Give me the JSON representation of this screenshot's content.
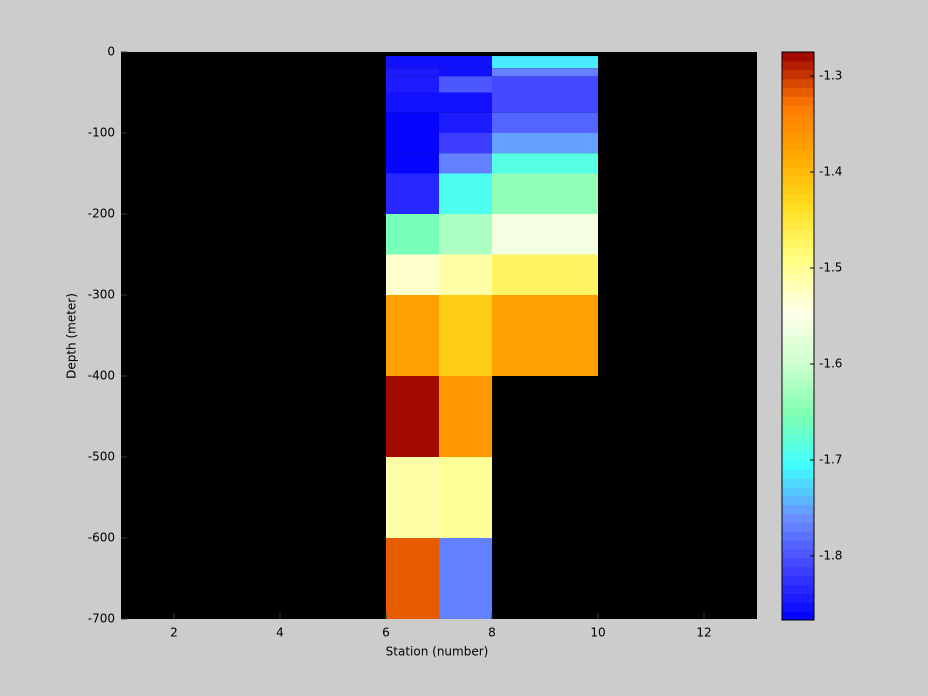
{
  "chart_data": {
    "type": "heatmap",
    "xlabel": "Station (number)",
    "ylabel": "Depth (meter)",
    "xlim": [
      1,
      13
    ],
    "xticks": [
      2,
      4,
      6,
      8,
      10,
      12
    ],
    "ylim": [
      -700,
      0
    ],
    "yticks": [
      0,
      -100,
      -200,
      -300,
      -400,
      -500,
      -600,
      -700
    ],
    "x_edges": [
      6,
      7,
      8,
      10
    ],
    "y_edges": [
      -5,
      -20,
      -30,
      -50,
      -75,
      -100,
      -125,
      -150,
      -200,
      -250,
      -300,
      -400,
      -500,
      -600,
      -700
    ],
    "z": [
      [
        -1.85,
        -1.85,
        -1.71
      ],
      [
        -1.84,
        -1.85,
        -1.77
      ],
      [
        -1.84,
        -1.8,
        -1.81
      ],
      [
        -1.855,
        -1.85,
        -1.81
      ],
      [
        -1.86,
        -1.84,
        -1.79
      ],
      [
        -1.865,
        -1.82,
        -1.75
      ],
      [
        -1.86,
        -1.77,
        -1.69
      ],
      [
        -1.83,
        -1.7,
        -1.64
      ],
      [
        -1.66,
        -1.62,
        -1.56
      ],
      [
        -1.53,
        -1.51,
        -1.47
      ],
      [
        -1.37,
        -1.42,
        -1.37
      ],
      [
        -1.28,
        -1.36,
        null
      ],
      [
        -1.51,
        -1.5,
        null
      ],
      [
        -1.32,
        -1.77,
        null
      ]
    ],
    "clim": [
      -1.8667,
      -1.275
    ],
    "cticks": [
      -1.3,
      -1.4,
      -1.5,
      -1.6,
      -1.7,
      -1.8
    ],
    "colormap": [
      "#0000ff",
      "#4040ff",
      "#6a90ff",
      "#40ffff",
      "#80ffb0",
      "#d0ffd0",
      "#ffffe8",
      "#ffff80",
      "#ffdd20",
      "#ffaa00",
      "#ff7700",
      "#990000"
    ],
    "background": "#000000"
  }
}
